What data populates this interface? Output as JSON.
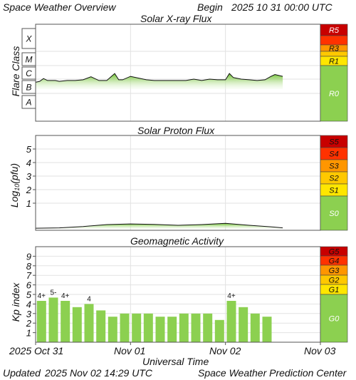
{
  "header": {
    "title": "Space Weather Overview",
    "begin_label": "Begin",
    "begin_value": "2025 10 31 00:00 UTC"
  },
  "footer": {
    "updated_label": "Updated",
    "updated_value": "2025 Nov 02 14:29 UTC",
    "org": "Space Weather Prediction Center"
  },
  "time_axis": {
    "title": "Universal Time",
    "tick_labels": [
      "2025 Oct 31",
      "Nov 01",
      "Nov 02",
      "Nov 03"
    ],
    "start": "2025-10-31T00:00Z",
    "end": "2025-11-03T00:00Z",
    "data_end": "2025-11-02T14:29Z"
  },
  "colors": {
    "fill_top": "#6cc02c",
    "fill_bottom": "#ecf8e0",
    "bar": "#8cd050",
    "line": "#111111",
    "level_none": "#8cd050",
    "level_1": "#ffe600",
    "level_2": "#ffc800",
    "level_3": "#ff9600",
    "level_4": "#ff3200",
    "level_5": "#c80000"
  },
  "chart_data": [
    {
      "type": "area",
      "title": "Solar X-ray Flux",
      "ylabel": "Flare Class",
      "y_class_labels": [
        "A",
        "B",
        "C",
        "M",
        "X"
      ],
      "x": [
        "2025-10-31T00:00Z",
        "2025-10-31T01:00Z",
        "2025-10-31T02:00Z",
        "2025-10-31T03:00Z",
        "2025-10-31T04:00Z",
        "2025-10-31T05:00Z",
        "2025-10-31T06:00Z",
        "2025-10-31T08:00Z",
        "2025-10-31T10:00Z",
        "2025-10-31T12:00Z",
        "2025-10-31T14:00Z",
        "2025-10-31T16:00Z",
        "2025-10-31T18:00Z",
        "2025-10-31T20:00Z",
        "2025-10-31T21:00Z",
        "2025-10-31T22:00Z",
        "2025-11-01T00:00Z",
        "2025-11-01T02:00Z",
        "2025-11-01T04:00Z",
        "2025-11-01T06:00Z",
        "2025-11-01T08:00Z",
        "2025-11-01T10:00Z",
        "2025-11-01T12:00Z",
        "2025-11-01T14:00Z",
        "2025-11-01T16:00Z",
        "2025-11-01T18:00Z",
        "2025-11-01T20:00Z",
        "2025-11-01T22:00Z",
        "2025-11-02T00:00Z",
        "2025-11-02T01:00Z",
        "2025-11-02T02:00Z",
        "2025-11-02T04:00Z",
        "2025-11-02T06:00Z",
        "2025-11-02T08:00Z",
        "2025-11-02T10:00Z",
        "2025-11-02T11:30Z",
        "2025-11-02T12:30Z",
        "2025-11-02T14:29Z"
      ],
      "values": [
        "B6",
        "B7",
        "C1.1",
        "B8",
        "B8",
        "B8",
        "B7",
        "B8",
        "B8",
        "B9",
        "C1.5",
        "B8",
        "B8",
        "C2.6",
        "B9",
        "B9",
        "C1.6",
        "C1.2",
        "B9",
        "B8",
        "B8",
        "B8",
        "B8",
        "B8",
        "C1.0",
        "B8",
        "C1.0",
        "B9",
        "B9",
        "C2.6",
        "C1.3",
        "C1.0",
        "B9",
        "B8",
        "B9",
        "C1.6",
        "C2.2",
        "C1.6"
      ],
      "series_colors": {
        "line": "#111111",
        "fill": "#6cc02c"
      },
      "scale_labels": [
        "R5",
        "R3",
        "R1",
        "R0"
      ]
    },
    {
      "type": "area",
      "title": "Solar Proton Flux",
      "ylabel": "Log10(pfu)",
      "ylabel_base": "Log",
      "ylabel_sub": "10",
      "ylabel_unit": "(pfu)",
      "ylim": [
        -1,
        6
      ],
      "y_ticks": [
        1,
        2,
        3,
        4,
        5
      ],
      "x": [
        "2025-10-31T00:00Z",
        "2025-10-31T06:00Z",
        "2025-10-31T12:00Z",
        "2025-10-31T18:00Z",
        "2025-11-01T00:00Z",
        "2025-11-01T06:00Z",
        "2025-11-01T12:00Z",
        "2025-11-01T18:00Z",
        "2025-11-02T00:00Z",
        "2025-11-02T06:00Z",
        "2025-11-02T12:00Z",
        "2025-11-02T14:29Z"
      ],
      "values": [
        -0.85,
        -0.82,
        -0.72,
        -0.58,
        -0.53,
        -0.57,
        -0.63,
        -0.58,
        -0.49,
        -0.63,
        -0.76,
        -0.82
      ],
      "scale_labels": [
        "S5",
        "S4",
        "S3",
        "S2",
        "S1",
        "S0"
      ]
    },
    {
      "type": "bar",
      "title": "Geomagnetic Activity",
      "ylabel": "Kp index",
      "ylim": [
        0,
        10
      ],
      "y_ticks": [
        1,
        2,
        3,
        4,
        5,
        6,
        7,
        8,
        9
      ],
      "x": [
        "2025-10-31T00:00Z",
        "2025-10-31T03:00Z",
        "2025-10-31T06:00Z",
        "2025-10-31T09:00Z",
        "2025-10-31T12:00Z",
        "2025-10-31T15:00Z",
        "2025-10-31T18:00Z",
        "2025-10-31T21:00Z",
        "2025-11-01T00:00Z",
        "2025-11-01T03:00Z",
        "2025-11-01T06:00Z",
        "2025-11-01T09:00Z",
        "2025-11-01T12:00Z",
        "2025-11-01T15:00Z",
        "2025-11-01T18:00Z",
        "2025-11-01T21:00Z",
        "2025-11-02T00:00Z",
        "2025-11-02T03:00Z",
        "2025-11-02T06:00Z",
        "2025-11-02T09:00Z"
      ],
      "values": [
        4.33,
        4.67,
        4.33,
        3.67,
        4.0,
        3.33,
        2.67,
        3.0,
        3.0,
        3.0,
        2.67,
        2.67,
        3.0,
        3.0,
        3.0,
        2.33,
        4.33,
        3.67,
        3.0,
        2.67
      ],
      "bar_labels": [
        "4+",
        "5-",
        "4+",
        "",
        "4",
        "",
        "",
        "",
        "",
        "",
        "",
        "",
        "",
        "",
        "",
        "",
        "4+",
        "",
        "",
        ""
      ],
      "scale_labels": [
        "G5",
        "G4",
        "G3",
        "G2",
        "G1",
        "G0"
      ]
    }
  ]
}
